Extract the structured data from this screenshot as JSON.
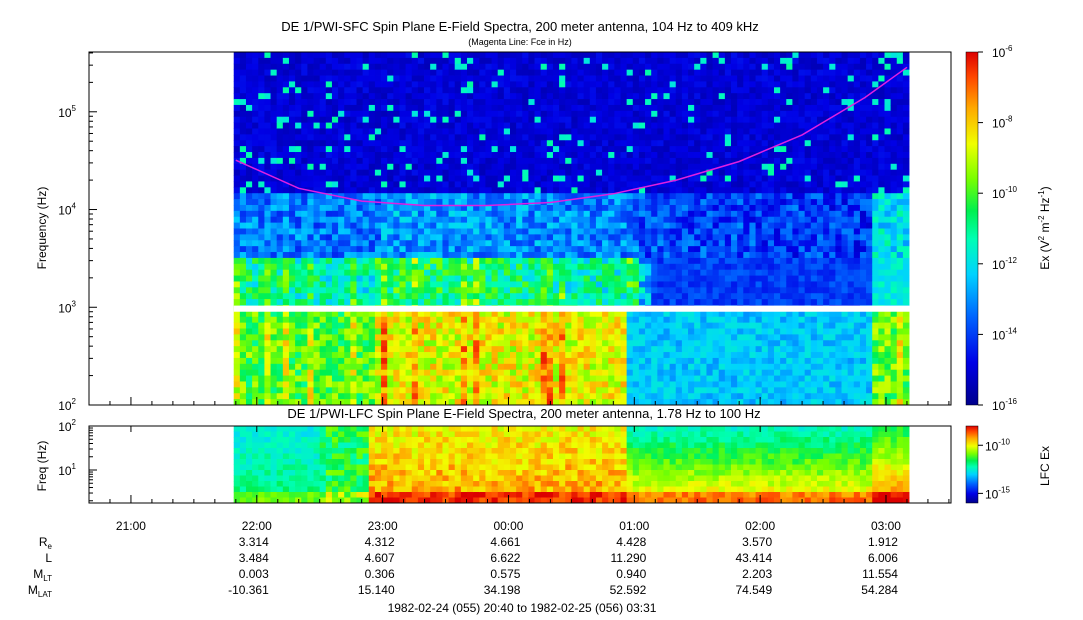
{
  "chart_data": [
    {
      "type": "heatmap",
      "title": "DE 1/PWI-SFC  Spin Plane E-Field Spectra, 200 meter antenna, 104 Hz to 409 kHz",
      "subtitle": "(Magenta Line: Fce in Hz)",
      "ylabel": "Frequency (Hz)",
      "yscale": "log",
      "ylim": [
        100,
        409000
      ],
      "ytick_exponents": [
        "5",
        "4",
        "3",
        "2"
      ],
      "colorbar": {
        "label_main": "Ex (V",
        "label_sup1": "2",
        "label_mid": " m",
        "label_sup2": "-2",
        "label_mid2": " Hz",
        "label_sup3": "-1",
        "label_end": ")",
        "scale": "log",
        "range": [
          1e-16,
          1e-06
        ],
        "tick_exponents": [
          "-6",
          "-8",
          "-10",
          "-12",
          "-14",
          "-16"
        ]
      },
      "data_start": "21:49",
      "data_end": "03:11",
      "gap_band_hz": [
        900,
        1040
      ],
      "series": [
        {
          "name": "Fce",
          "color": "#e020e0",
          "x": [
            "21:50",
            "22:20",
            "22:50",
            "23:20",
            "23:50",
            "00:20",
            "00:50",
            "01:20",
            "01:50",
            "02:20",
            "02:50",
            "03:10"
          ],
          "y": [
            32000,
            16500,
            12200,
            11000,
            11000,
            11800,
            14500,
            20000,
            31000,
            58000,
            140000,
            285000
          ]
        }
      ]
    },
    {
      "type": "heatmap",
      "title": "DE 1/PWI-LFC  Spin Plane E-Field Spectra, 200 meter antenna, 1.78 Hz to 100 Hz",
      "ylabel": "Freq (Hz)",
      "yscale": "log",
      "ylim": [
        1.78,
        100
      ],
      "ytick_exponents": [
        "2",
        "1"
      ],
      "colorbar": {
        "label": "LFC Ex",
        "scale": "log",
        "range": [
          1e-16,
          1e-08
        ],
        "tick_exponents": [
          "-10",
          "-15"
        ]
      },
      "data_start": "21:49",
      "data_end": "03:11"
    }
  ],
  "time_axis": {
    "range": [
      "20:40",
      "03:31"
    ],
    "ticks": [
      "21:00",
      "22:00",
      "23:00",
      "00:00",
      "01:00",
      "02:00",
      "03:00"
    ]
  },
  "ephemeris": {
    "rows": [
      {
        "label": "R",
        "sub": "e",
        "values": [
          "3.314",
          "4.312",
          "4.661",
          "4.428",
          "3.570",
          "1.912"
        ]
      },
      {
        "label": "L",
        "sub": "",
        "values": [
          "3.484",
          "4.607",
          "6.622",
          "11.290",
          "43.414",
          "6.006"
        ]
      },
      {
        "label": "M",
        "sub": "LT",
        "values": [
          "0.003",
          "0.306",
          "0.575",
          "0.940",
          "2.203",
          "11.554"
        ]
      },
      {
        "label": "M",
        "sub": "LAT",
        "values": [
          "-10.361",
          "15.140",
          "34.198",
          "52.592",
          "74.549",
          "54.284"
        ]
      }
    ]
  },
  "footer": "1982-02-24 (055) 20:40 to 1982-02-25 (056) 03:31"
}
